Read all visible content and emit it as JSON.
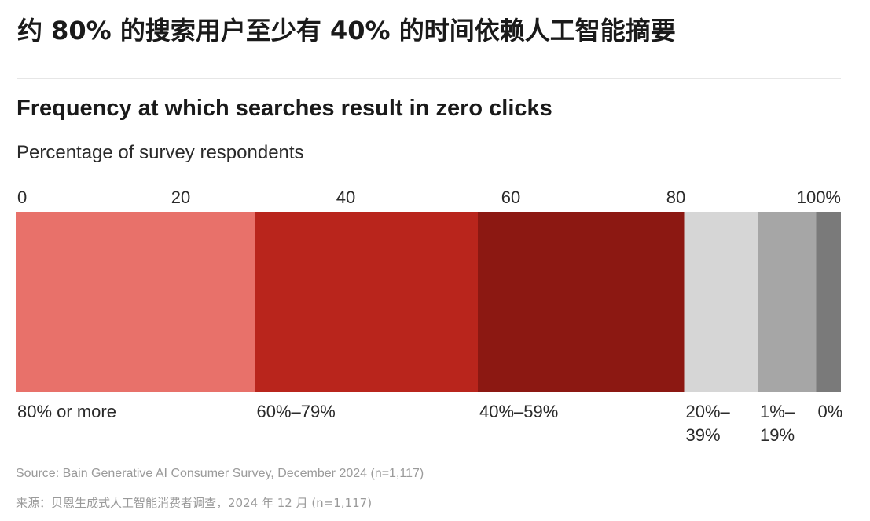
{
  "headline": "约 80% 的搜索用户至少有 40% 的时间依赖人工智能摘要",
  "chart_data": {
    "type": "bar",
    "orientation": "horizontal-stacked",
    "title": "Frequency at which searches result in zero clicks",
    "subtitle": "Percentage of survey respondents",
    "xlim": [
      0,
      100
    ],
    "tick_labels": [
      "0",
      "20",
      "40",
      "60",
      "80",
      "100%"
    ],
    "tick_values": [
      0,
      20,
      40,
      60,
      80,
      100
    ],
    "grid": false,
    "legend": "below-bar",
    "segments": [
      {
        "label": [
          "80% or more"
        ],
        "value": 29,
        "color": "#e8716a"
      },
      {
        "label": [
          "60%–79%"
        ],
        "value": 27,
        "color": "#b9251c"
      },
      {
        "label": [
          "40%–59%"
        ],
        "value": 25,
        "color": "#8c1812"
      },
      {
        "label": [
          "20%–",
          "39%"
        ],
        "value": 9,
        "color": "#d6d6d6"
      },
      {
        "label": [
          "1%–",
          "19%"
        ],
        "value": 7,
        "color": "#a6a6a6"
      },
      {
        "label": [
          "0%"
        ],
        "value": 3,
        "color": "#7a7a7a"
      }
    ]
  },
  "source_en": "Source: Bain Generative AI Consumer Survey, December 2024 (n=1,117)",
  "source_zh": "来源：贝恩生成式人工智能消费者调查，2024 年 12 月 (n=1,117)"
}
